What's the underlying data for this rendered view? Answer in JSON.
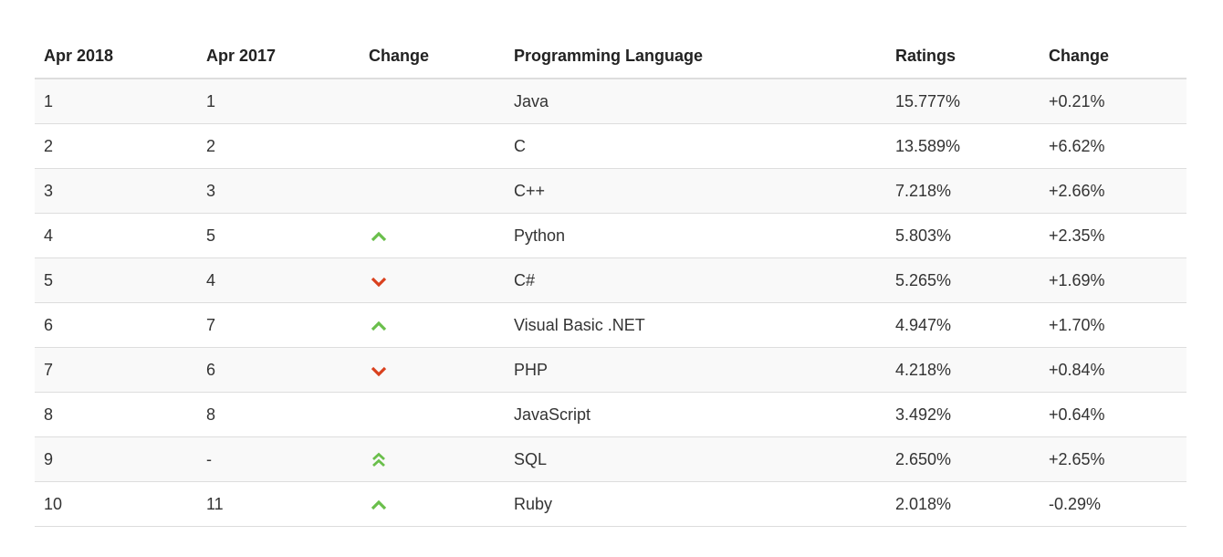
{
  "table": {
    "headers": [
      "Apr 2018",
      "Apr 2017",
      "Change",
      "Programming Language",
      "Ratings",
      "Change"
    ],
    "rows": [
      {
        "rank_now": "1",
        "rank_prev": "1",
        "trend": "none",
        "language": "Java",
        "rating": "15.777%",
        "change": "+0.21%"
      },
      {
        "rank_now": "2",
        "rank_prev": "2",
        "trend": "none",
        "language": "C",
        "rating": "13.589%",
        "change": "+6.62%"
      },
      {
        "rank_now": "3",
        "rank_prev": "3",
        "trend": "none",
        "language": "C++",
        "rating": "7.218%",
        "change": "+2.66%"
      },
      {
        "rank_now": "4",
        "rank_prev": "5",
        "trend": "up",
        "language": "Python",
        "rating": "5.803%",
        "change": "+2.35%"
      },
      {
        "rank_now": "5",
        "rank_prev": "4",
        "trend": "down",
        "language": "C#",
        "rating": "5.265%",
        "change": "+1.69%"
      },
      {
        "rank_now": "6",
        "rank_prev": "7",
        "trend": "up",
        "language": "Visual Basic .NET",
        "rating": "4.947%",
        "change": "+1.70%"
      },
      {
        "rank_now": "7",
        "rank_prev": "6",
        "trend": "down",
        "language": "PHP",
        "rating": "4.218%",
        "change": "+0.84%"
      },
      {
        "rank_now": "8",
        "rank_prev": "8",
        "trend": "none",
        "language": "JavaScript",
        "rating": "3.492%",
        "change": "+0.64%"
      },
      {
        "rank_now": "9",
        "rank_prev": "-",
        "trend": "double-up",
        "language": "SQL",
        "rating": "2.650%",
        "change": "+2.65%"
      },
      {
        "rank_now": "10",
        "rank_prev": "11",
        "trend": "up",
        "language": "Ruby",
        "rating": "2.018%",
        "change": "-0.29%"
      }
    ]
  },
  "icons": {
    "up": "chevron-up-icon",
    "down": "chevron-down-icon",
    "double-up": "double-chevron-up-icon"
  },
  "colors": {
    "up": "#6abf4b",
    "down": "#d9411e",
    "header_border": "#dddddd",
    "row_stripe": "#f9f9f9",
    "text": "#333333"
  }
}
